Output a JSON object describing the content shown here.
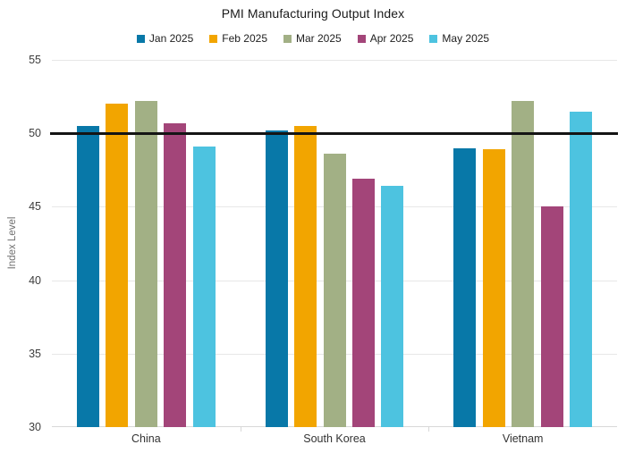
{
  "chart_data": {
    "type": "bar",
    "title": "PMI Manufacturing Output Index",
    "ylabel": "Index Level",
    "ylim": [
      30,
      55
    ],
    "yticks": [
      30,
      35,
      40,
      45,
      50,
      55
    ],
    "grid": true,
    "legend_position": "top-center",
    "reference_line": 50,
    "reference_line_color": "#141414",
    "categories": [
      "China",
      "South Korea",
      "Vietnam"
    ],
    "series": [
      {
        "name": "Jan 2025",
        "color": "#0878a8",
        "values": [
          50.5,
          50.2,
          49.0
        ]
      },
      {
        "name": "Feb 2025",
        "color": "#f2a500",
        "values": [
          52.0,
          50.5,
          48.9
        ]
      },
      {
        "name": "Mar 2025",
        "color": "#a2b085",
        "values": [
          52.2,
          48.6,
          52.2
        ]
      },
      {
        "name": "Apr 2025",
        "color": "#a34579",
        "values": [
          50.7,
          46.9,
          45.0
        ]
      },
      {
        "name": "May 2025",
        "color": "#4dc3e0",
        "values": [
          49.1,
          46.4,
          51.5
        ]
      }
    ]
  }
}
